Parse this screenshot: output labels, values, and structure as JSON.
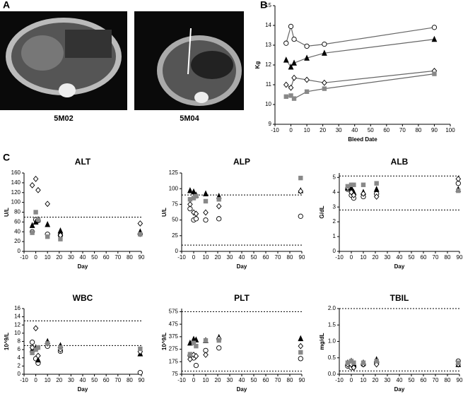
{
  "panel_labels": [
    "A",
    "B",
    "C"
  ],
  "images": [
    {
      "label": "5M02"
    },
    {
      "label": "5M04"
    }
  ],
  "chart_data": [
    {
      "type": "line",
      "xlabel": "Bleed Date",
      "ylabel": "Kg",
      "line_color": "#666666",
      "x": [
        -3,
        0,
        2,
        10,
        21,
        90
      ],
      "xlim": [
        -10,
        100
      ],
      "xticks": [
        -10,
        0,
        10,
        20,
        30,
        40,
        50,
        60,
        70,
        80,
        90,
        100
      ],
      "ylim": [
        9,
        15
      ],
      "yticks": [
        9,
        10,
        11,
        12,
        13,
        14,
        15
      ],
      "series": [
        {
          "marker": "circle",
          "color": "#ffffff",
          "values": [
            13.1,
            13.95,
            13.3,
            12.95,
            13.05,
            13.9
          ]
        },
        {
          "marker": "triangle",
          "color": "#000000",
          "values": [
            12.25,
            11.9,
            12.1,
            12.35,
            12.6,
            13.3
          ]
        },
        {
          "marker": "diamond",
          "color": "#ffffff",
          "values": [
            11.0,
            10.85,
            11.35,
            11.25,
            11.1,
            11.7
          ]
        },
        {
          "marker": "square",
          "color": "#888888",
          "values": [
            10.4,
            10.45,
            10.3,
            10.65,
            10.8,
            11.55
          ]
        }
      ]
    },
    {
      "type": "scatter",
      "title": "ALT",
      "xlabel": "Day",
      "ylabel": "U/L",
      "x": [
        -3,
        0,
        2,
        10,
        21,
        89
      ],
      "xlim": [
        -10,
        90
      ],
      "xticks": [
        -10,
        0,
        10,
        20,
        30,
        40,
        50,
        60,
        70,
        80,
        90
      ],
      "ylim": [
        0,
        160
      ],
      "yticks": [
        0,
        20,
        40,
        60,
        80,
        100,
        120,
        140,
        160
      ],
      "ref_lines": [
        70,
        0
      ],
      "series": [
        {
          "marker": "circle",
          "color": "#ffffff",
          "values": [
            40,
            65,
            63,
            35,
            33,
            35
          ]
        },
        {
          "marker": "triangle",
          "color": "#000000",
          "values": [
            53,
            60,
            65,
            55,
            42,
            40
          ]
        },
        {
          "marker": "diamond",
          "color": "#ffffff",
          "values": [
            135,
            148,
            125,
            97,
            33,
            57
          ]
        },
        {
          "marker": "square",
          "color": "#888888",
          "values": [
            38,
            80,
            65,
            30,
            25,
            35
          ]
        }
      ]
    },
    {
      "type": "scatter",
      "title": "ALP",
      "xlabel": "Day",
      "ylabel": "U/L",
      "x": [
        -3,
        0,
        2,
        10,
        21,
        89
      ],
      "xlim": [
        -10,
        90
      ],
      "xticks": [
        -10,
        0,
        10,
        20,
        30,
        40,
        50,
        60,
        70,
        80,
        90
      ],
      "ylim": [
        0,
        125
      ],
      "yticks": [
        0,
        25,
        50,
        75,
        100,
        125
      ],
      "ref_lines": [
        90,
        10
      ],
      "series": [
        {
          "marker": "circle",
          "color": "#ffffff",
          "values": [
            68,
            50,
            52,
            50,
            52,
            56
          ]
        },
        {
          "marker": "triangle",
          "color": "#000000",
          "values": [
            97,
            95,
            90,
            92,
            88,
            97
          ]
        },
        {
          "marker": "diamond",
          "color": "#ffffff",
          "values": [
            75,
            62,
            60,
            62,
            72,
            96
          ]
        },
        {
          "marker": "square",
          "color": "#888888",
          "values": [
            83,
            85,
            88,
            80,
            83,
            117
          ]
        }
      ]
    },
    {
      "type": "scatter",
      "title": "ALB",
      "xlabel": "Day",
      "ylabel": "G/dL",
      "x": [
        -3,
        0,
        2,
        10,
        21,
        89
      ],
      "xlim": [
        -10,
        90
      ],
      "xticks": [
        -10,
        0,
        10,
        20,
        30,
        40,
        50,
        60,
        70,
        80,
        90
      ],
      "ylim": [
        0,
        5.3
      ],
      "yticks": [
        0,
        1,
        2,
        3,
        4,
        5
      ],
      "ref_lines": [
        5.1,
        2.8
      ],
      "series": [
        {
          "marker": "circle",
          "color": "#ffffff",
          "values": [
            4.2,
            3.8,
            3.6,
            3.7,
            3.9,
            4.6
          ]
        },
        {
          "marker": "triangle",
          "color": "#000000",
          "values": [
            4.3,
            4.3,
            4.0,
            4.0,
            4.2,
            4.2
          ]
        },
        {
          "marker": "diamond",
          "color": "#ffffff",
          "values": [
            4.3,
            4.0,
            3.8,
            3.9,
            3.7,
            4.9
          ]
        },
        {
          "marker": "square",
          "color": "#888888",
          "values": [
            4.4,
            4.5,
            4.5,
            4.5,
            4.6,
            4.1
          ]
        }
      ]
    },
    {
      "type": "scatter",
      "title": "WBC",
      "xlabel": "Day",
      "ylabel": "10^9/L",
      "x": [
        -3,
        0,
        2,
        10,
        21,
        89
      ],
      "xlim": [
        -10,
        90
      ],
      "xticks": [
        -10,
        0,
        10,
        20,
        30,
        40,
        50,
        60,
        70,
        80,
        90
      ],
      "ylim": [
        0,
        16
      ],
      "yticks": [
        0,
        2,
        4,
        6,
        8,
        10,
        12,
        14,
        16
      ],
      "ref_lines": [
        13,
        7
      ],
      "series": [
        {
          "marker": "circle",
          "color": "#ffffff",
          "values": [
            7.8,
            3.8,
            2.7,
            6.8,
            5.6,
            0.4
          ]
        },
        {
          "marker": "triangle",
          "color": "#000000",
          "values": [
            6,
            6.5,
            3.5,
            8,
            7,
            5
          ]
        },
        {
          "marker": "diamond",
          "color": "#ffffff",
          "values": [
            6.5,
            11.2,
            4.5,
            7.5,
            6,
            5.5
          ]
        },
        {
          "marker": "square",
          "color": "#888888",
          "values": [
            5.2,
            6,
            6.5,
            7.5,
            6.5,
            6.2
          ]
        }
      ]
    },
    {
      "type": "scatter",
      "title": "PLT",
      "xlabel": "Day",
      "ylabel": "10^9/L",
      "x": [
        -3,
        0,
        2,
        10,
        21,
        89
      ],
      "xlim": [
        -10,
        90
      ],
      "xticks": [
        -10,
        0,
        10,
        20,
        30,
        40,
        50,
        60,
        70,
        80,
        90
      ],
      "ylim": [
        75,
        600
      ],
      "yticks": [
        75,
        175,
        275,
        375,
        475,
        575
      ],
      "ref_lines": [
        575,
        100
      ],
      "series": [
        {
          "marker": "circle",
          "color": "#ffffff",
          "values": [
            225,
            205,
            145,
            265,
            285,
            200
          ]
        },
        {
          "marker": "triangle",
          "color": "#000000",
          "values": [
            325,
            355,
            350,
            345,
            370,
            360
          ]
        },
        {
          "marker": "diamond",
          "color": "#ffffff",
          "values": [
            195,
            230,
            220,
            230,
            360,
            300
          ]
        },
        {
          "marker": "square",
          "color": "#888888",
          "values": [
            235,
            325,
            300,
            345,
            345,
            250
          ]
        }
      ]
    },
    {
      "type": "scatter",
      "title": "TBIL",
      "xlabel": "Day",
      "ylabel": "mg/dL",
      "x": [
        -3,
        0,
        2,
        10,
        21,
        89
      ],
      "xlim": [
        -10,
        90
      ],
      "xticks": [
        -10,
        0,
        10,
        20,
        30,
        40,
        50,
        60,
        70,
        80,
        90
      ],
      "ylim": [
        0,
        2.0
      ],
      "yticks": [
        {
          "value": 0,
          "label": "0.0"
        },
        {
          "value": 0.5,
          "label": "0.5"
        },
        {
          "value": 1,
          "label": "1.0"
        },
        {
          "value": 1.5,
          "label": "1.5"
        },
        {
          "value": 2,
          "label": "2.0"
        }
      ],
      "ref_lines": [
        2.0,
        0.1
      ],
      "series": [
        {
          "marker": "circle",
          "color": "#ffffff",
          "values": [
            0.25,
            0.2,
            0.25,
            0.3,
            0.35,
            0.4
          ]
        },
        {
          "marker": "triangle",
          "color": "#000000",
          "values": [
            0.35,
            0.4,
            0.3,
            0.35,
            0.45,
            0.3
          ]
        },
        {
          "marker": "diamond",
          "color": "#ffffff",
          "values": [
            0.3,
            0.3,
            0.2,
            0.3,
            0.3,
            0.3
          ]
        },
        {
          "marker": "square",
          "color": "#888888",
          "values": [
            0.35,
            0.4,
            0.35,
            0.35,
            0.4,
            0.35
          ]
        }
      ]
    }
  ]
}
